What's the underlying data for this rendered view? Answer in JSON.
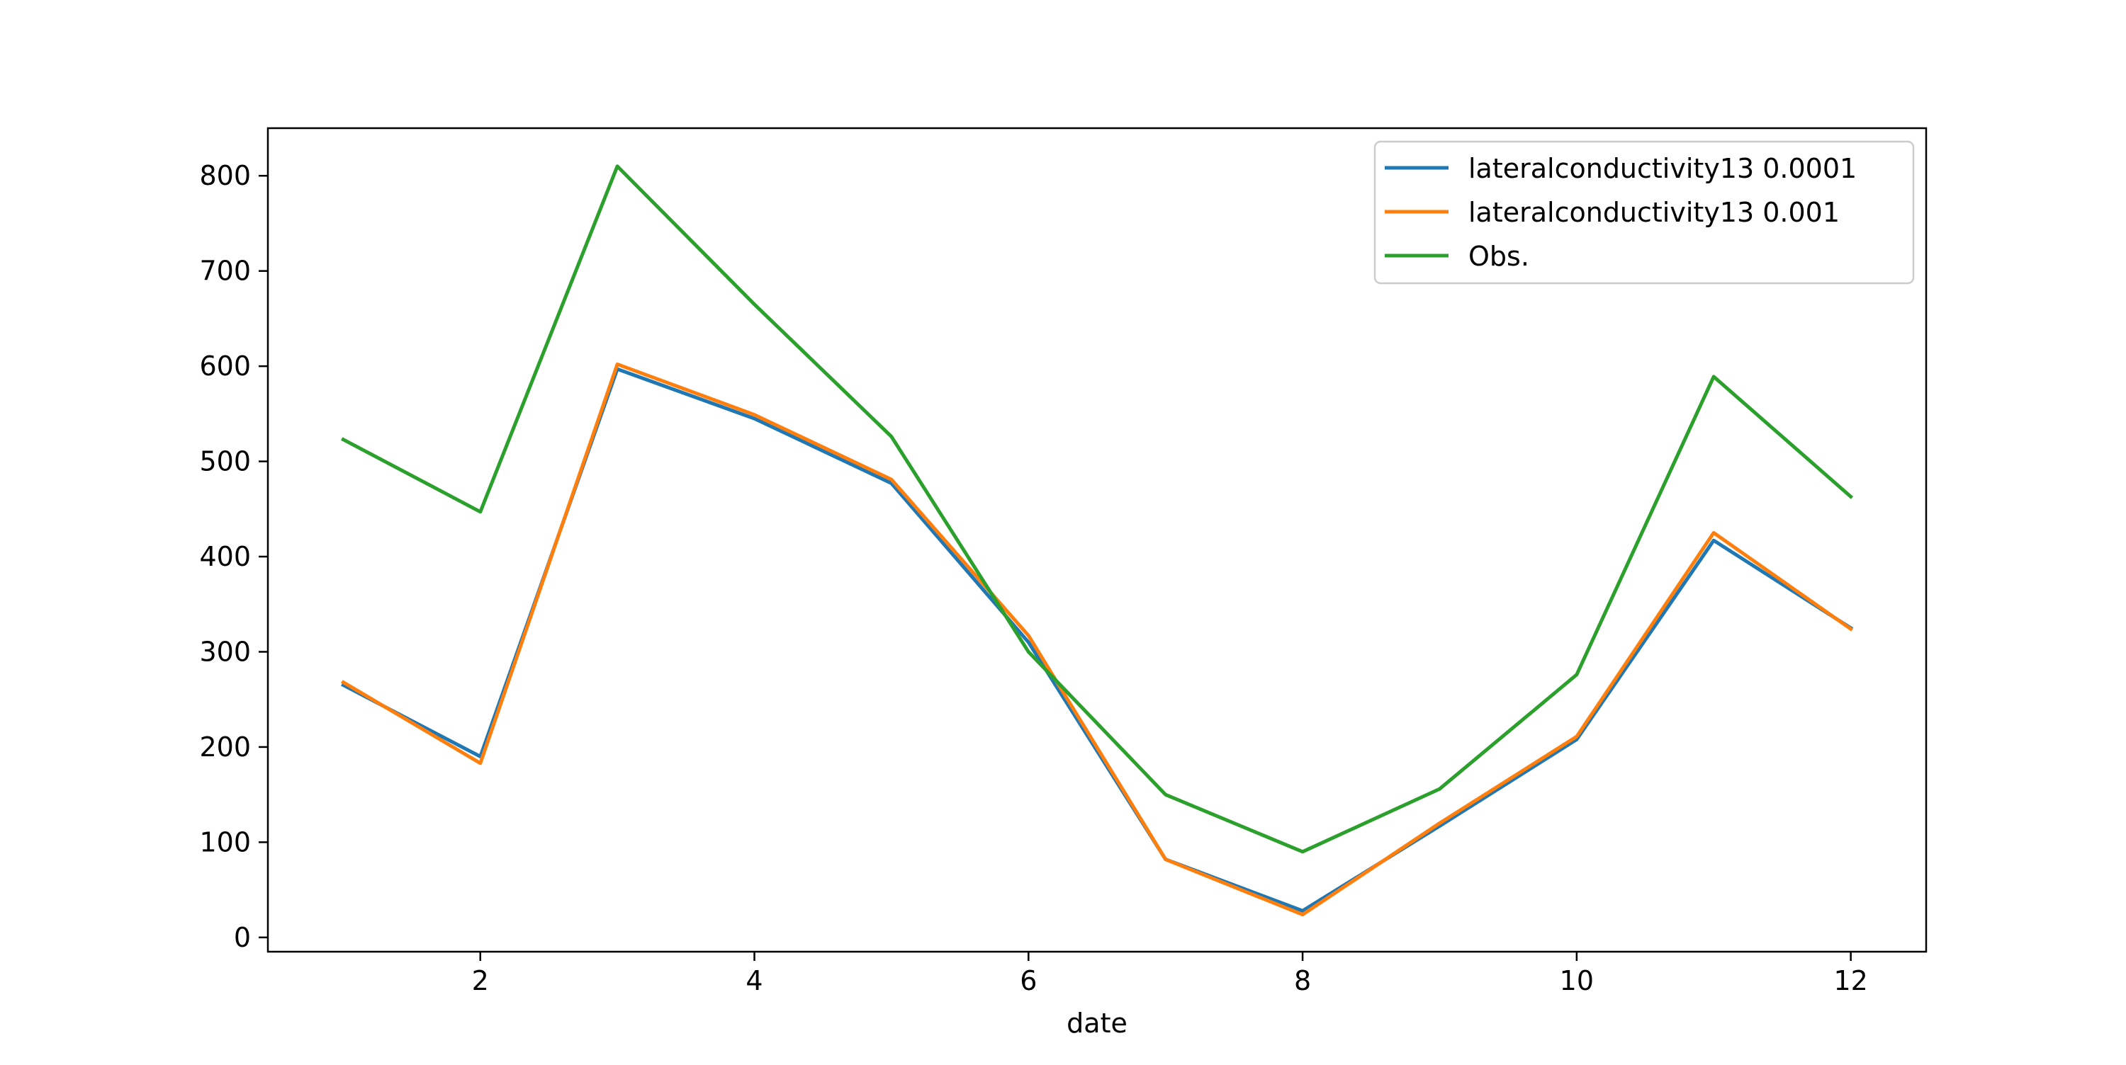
{
  "chart_data": {
    "type": "line",
    "title": "",
    "xlabel": "date",
    "ylabel": "",
    "xlim": [
      0.45,
      12.55
    ],
    "ylim": [
      -15,
      850
    ],
    "xticks": [
      2,
      4,
      6,
      8,
      10,
      12
    ],
    "yticks": [
      0,
      100,
      200,
      300,
      400,
      500,
      600,
      700,
      800
    ],
    "grid": false,
    "legend_position": "top-right",
    "x": [
      1,
      2,
      3,
      4,
      5,
      6,
      7,
      8,
      9,
      10,
      11,
      12
    ],
    "series": [
      {
        "name": "lateralconductivity13 0.0001",
        "color": "#1f77b4",
        "values": [
          265,
          190,
          597,
          545,
          477,
          310,
          82,
          28,
          117,
          208,
          417,
          325
        ]
      },
      {
        "name": "lateralconductivity13 0.001",
        "color": "#ff7f0e",
        "values": [
          268,
          183,
          602,
          549,
          481,
          317,
          82,
          24,
          120,
          211,
          425,
          324
        ]
      },
      {
        "name": "Obs.",
        "color": "#2ca02c",
        "values": [
          523,
          447,
          810,
          665,
          526,
          300,
          150,
          90,
          156,
          276,
          589,
          463
        ]
      }
    ]
  }
}
